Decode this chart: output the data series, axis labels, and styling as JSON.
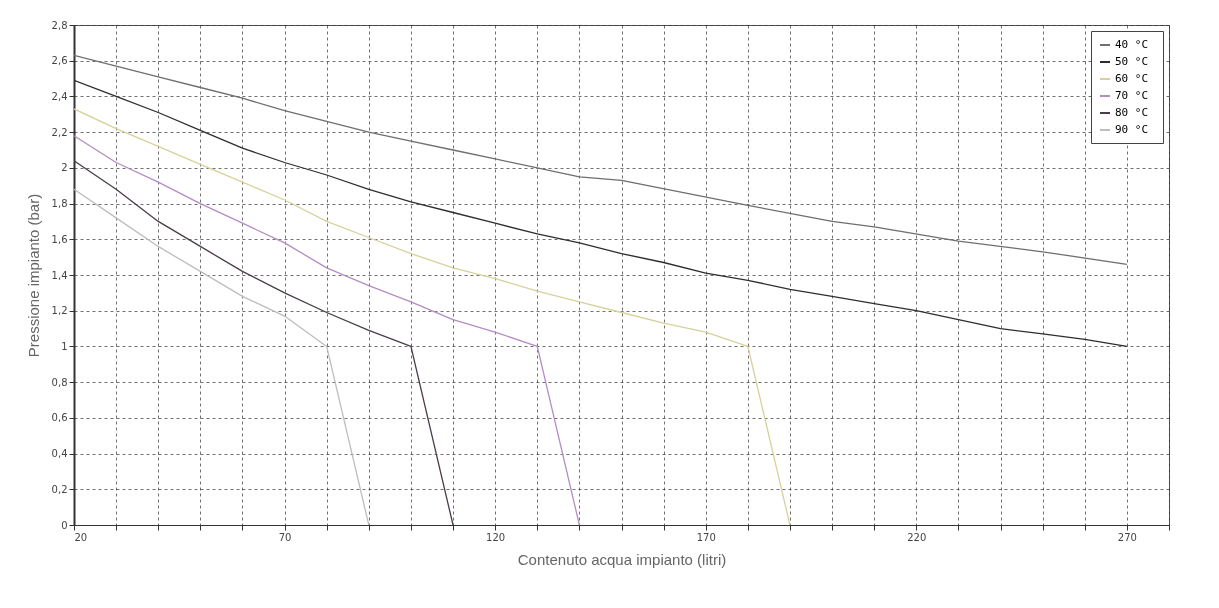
{
  "chart_data": {
    "type": "line",
    "xlabel": "Contenuto acqua impianto (litri)",
    "ylabel": "Pressione impianto (bar)",
    "xlim": [
      20,
      280
    ],
    "xticks": [
      20,
      {
        "value": 30,
        "label": null
      },
      {
        "value": 40,
        "label": null
      },
      {
        "value": 50,
        "label": null
      },
      {
        "value": 60,
        "label": null
      },
      70,
      {
        "value": 80,
        "label": null
      },
      {
        "value": 90,
        "label": null
      },
      {
        "value": 100,
        "label": null
      },
      {
        "value": 110,
        "label": null
      },
      120,
      {
        "value": 130,
        "label": null
      },
      {
        "value": 140,
        "label": null
      },
      {
        "value": 150,
        "label": null
      },
      {
        "value": 160,
        "label": null
      },
      170,
      {
        "value": 180,
        "label": null
      },
      {
        "value": 190,
        "label": null
      },
      {
        "value": 200,
        "label": null
      },
      {
        "value": 210,
        "label": null
      },
      220,
      {
        "value": 230,
        "label": null
      },
      {
        "value": 240,
        "label": null
      },
      {
        "value": 250,
        "label": null
      },
      {
        "value": 260,
        "label": null
      },
      270,
      {
        "value": 280,
        "label": null
      }
    ],
    "ylim": [
      0,
      2.8
    ],
    "yticks": [
      0,
      {
        "value": 0.2,
        "label": "0,2"
      },
      {
        "value": 0.4,
        "label": "0,4"
      },
      {
        "value": 0.6,
        "label": "0,6"
      },
      {
        "value": 0.8,
        "label": "0,8"
      },
      1,
      {
        "value": 1.2,
        "label": "1,2"
      },
      {
        "value": 1.4,
        "label": "1,4"
      },
      {
        "value": 1.6,
        "label": "1,6"
      },
      {
        "value": 1.8,
        "label": "1,8"
      },
      2,
      {
        "value": 2.2,
        "label": "2,2"
      },
      {
        "value": 2.4,
        "label": "2,4"
      },
      {
        "value": 2.6,
        "label": "2,6"
      },
      {
        "value": 2.8,
        "label": "2,8"
      }
    ],
    "grid": true,
    "legend": "top right",
    "marker": "none",
    "line_style": "solid",
    "series": [
      {
        "name": "40  °C",
        "color": "#6e6e6e",
        "x": [
          20,
          30,
          40,
          50,
          60,
          70,
          80,
          90,
          100,
          110,
          120,
          130,
          140,
          150,
          180,
          200,
          210,
          230,
          250,
          270
        ],
        "values": [
          2.63,
          2.57,
          2.51,
          2.45,
          2.39,
          2.32,
          2.26,
          2.2,
          2.15,
          2.1,
          2.05,
          2.0,
          1.95,
          1.93,
          1.79,
          1.7,
          1.67,
          1.59,
          1.53,
          1.46
        ]
      },
      {
        "name": "50  °C",
        "color": "#2e2e2e",
        "x": [
          20,
          30,
          40,
          50,
          60,
          70,
          80,
          90,
          100,
          110,
          120,
          130,
          140,
          150,
          160,
          170,
          180,
          190,
          200,
          210,
          220,
          230,
          240,
          250,
          260,
          270
        ],
        "values": [
          2.49,
          2.4,
          2.31,
          2.21,
          2.11,
          2.03,
          1.96,
          1.88,
          1.81,
          1.75,
          1.69,
          1.63,
          1.58,
          1.52,
          1.47,
          1.41,
          1.37,
          1.32,
          1.28,
          1.24,
          1.2,
          1.15,
          1.1,
          1.07,
          1.04,
          1.0
        ]
      },
      {
        "name": "60  °C",
        "color": "#d6d29a",
        "x": [
          20,
          30,
          40,
          50,
          60,
          70,
          80,
          90,
          100,
          110,
          120,
          130,
          140,
          150,
          160,
          170,
          180,
          190
        ],
        "values": [
          2.33,
          2.22,
          2.12,
          2.02,
          1.92,
          1.82,
          1.7,
          1.61,
          1.52,
          1.44,
          1.38,
          1.31,
          1.25,
          1.19,
          1.13,
          1.08,
          1.0,
          0
        ]
      },
      {
        "name": "70  °C",
        "color": "#b48cc4",
        "x": [
          20,
          30,
          40,
          50,
          60,
          70,
          80,
          90,
          100,
          110,
          120,
          130,
          140
        ],
        "values": [
          2.18,
          2.03,
          1.92,
          1.8,
          1.69,
          1.58,
          1.44,
          1.34,
          1.25,
          1.15,
          1.08,
          1.0,
          0
        ]
      },
      {
        "name": "80  °C",
        "color": "#4a3c4a",
        "x": [
          20,
          30,
          40,
          50,
          60,
          70,
          80,
          90,
          100,
          110
        ],
        "values": [
          2.04,
          1.88,
          1.7,
          1.56,
          1.42,
          1.3,
          1.19,
          1.09,
          1.0,
          0
        ]
      },
      {
        "name": "90  °C",
        "color": "#bdbdbd",
        "x": [
          20,
          30,
          40,
          50,
          60,
          70,
          80,
          90
        ],
        "values": [
          1.88,
          1.72,
          1.56,
          1.42,
          1.28,
          1.17,
          1.0,
          0
        ]
      }
    ]
  }
}
